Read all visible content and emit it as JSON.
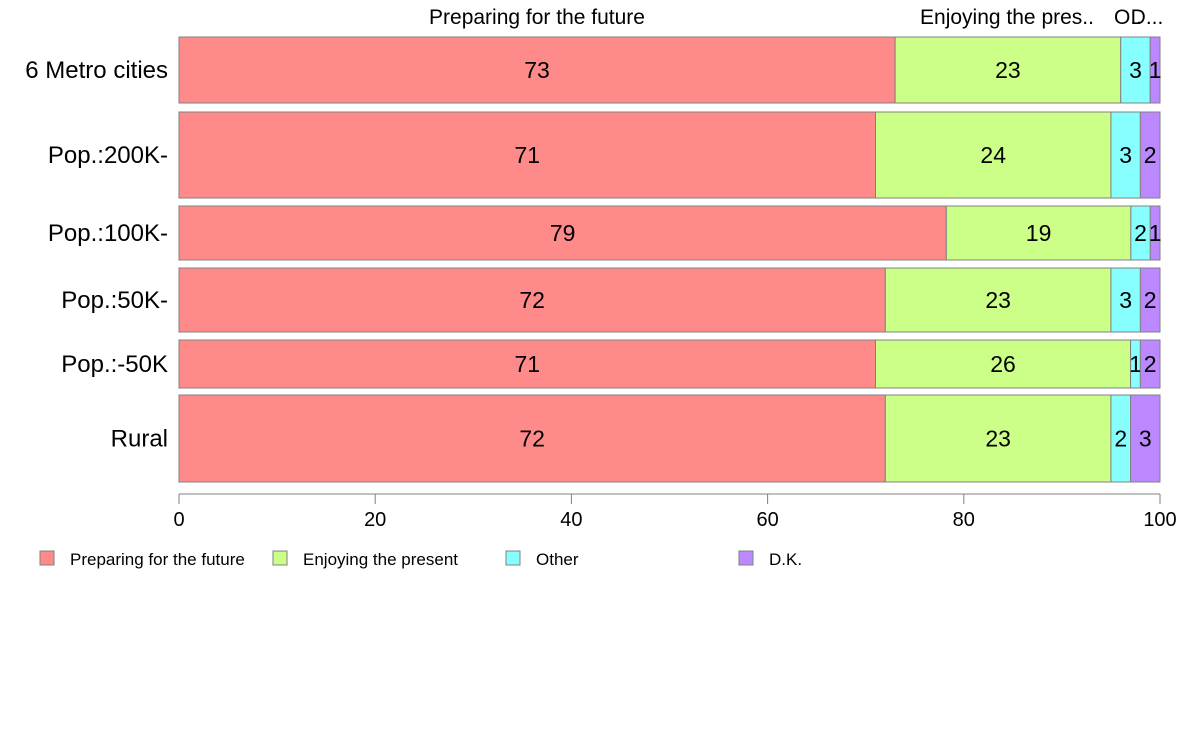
{
  "chart_data": {
    "type": "bar",
    "orientation": "horizontal",
    "stacked": true,
    "top_labels": [
      "Preparing for the future",
      "Enjoying the pres..",
      "O..",
      "D..."
    ],
    "categories": [
      "6 Metro cities",
      "Pop.:200K-",
      "Pop.:100K-",
      "Pop.:50K-",
      "Pop.:-50K",
      "Rural"
    ],
    "series": [
      {
        "name": "Preparing for the future",
        "color": "#ff8a8a",
        "values": [
          73,
          71,
          79,
          72,
          71,
          72
        ]
      },
      {
        "name": "Enjoying the present",
        "color": "#ccff88",
        "values": [
          23,
          24,
          19,
          23,
          26,
          23
        ]
      },
      {
        "name": "Other",
        "color": "#88ffff",
        "values": [
          3,
          3,
          2,
          3,
          1,
          2
        ]
      },
      {
        "name": "D.K.",
        "color": "#bb88ff",
        "values": [
          1,
          2,
          1,
          2,
          2,
          3
        ]
      }
    ],
    "xlim": [
      0,
      100
    ],
    "xticks": [
      0,
      20,
      40,
      60,
      80,
      100
    ],
    "legend_position": "bottom-left",
    "grid": false
  }
}
